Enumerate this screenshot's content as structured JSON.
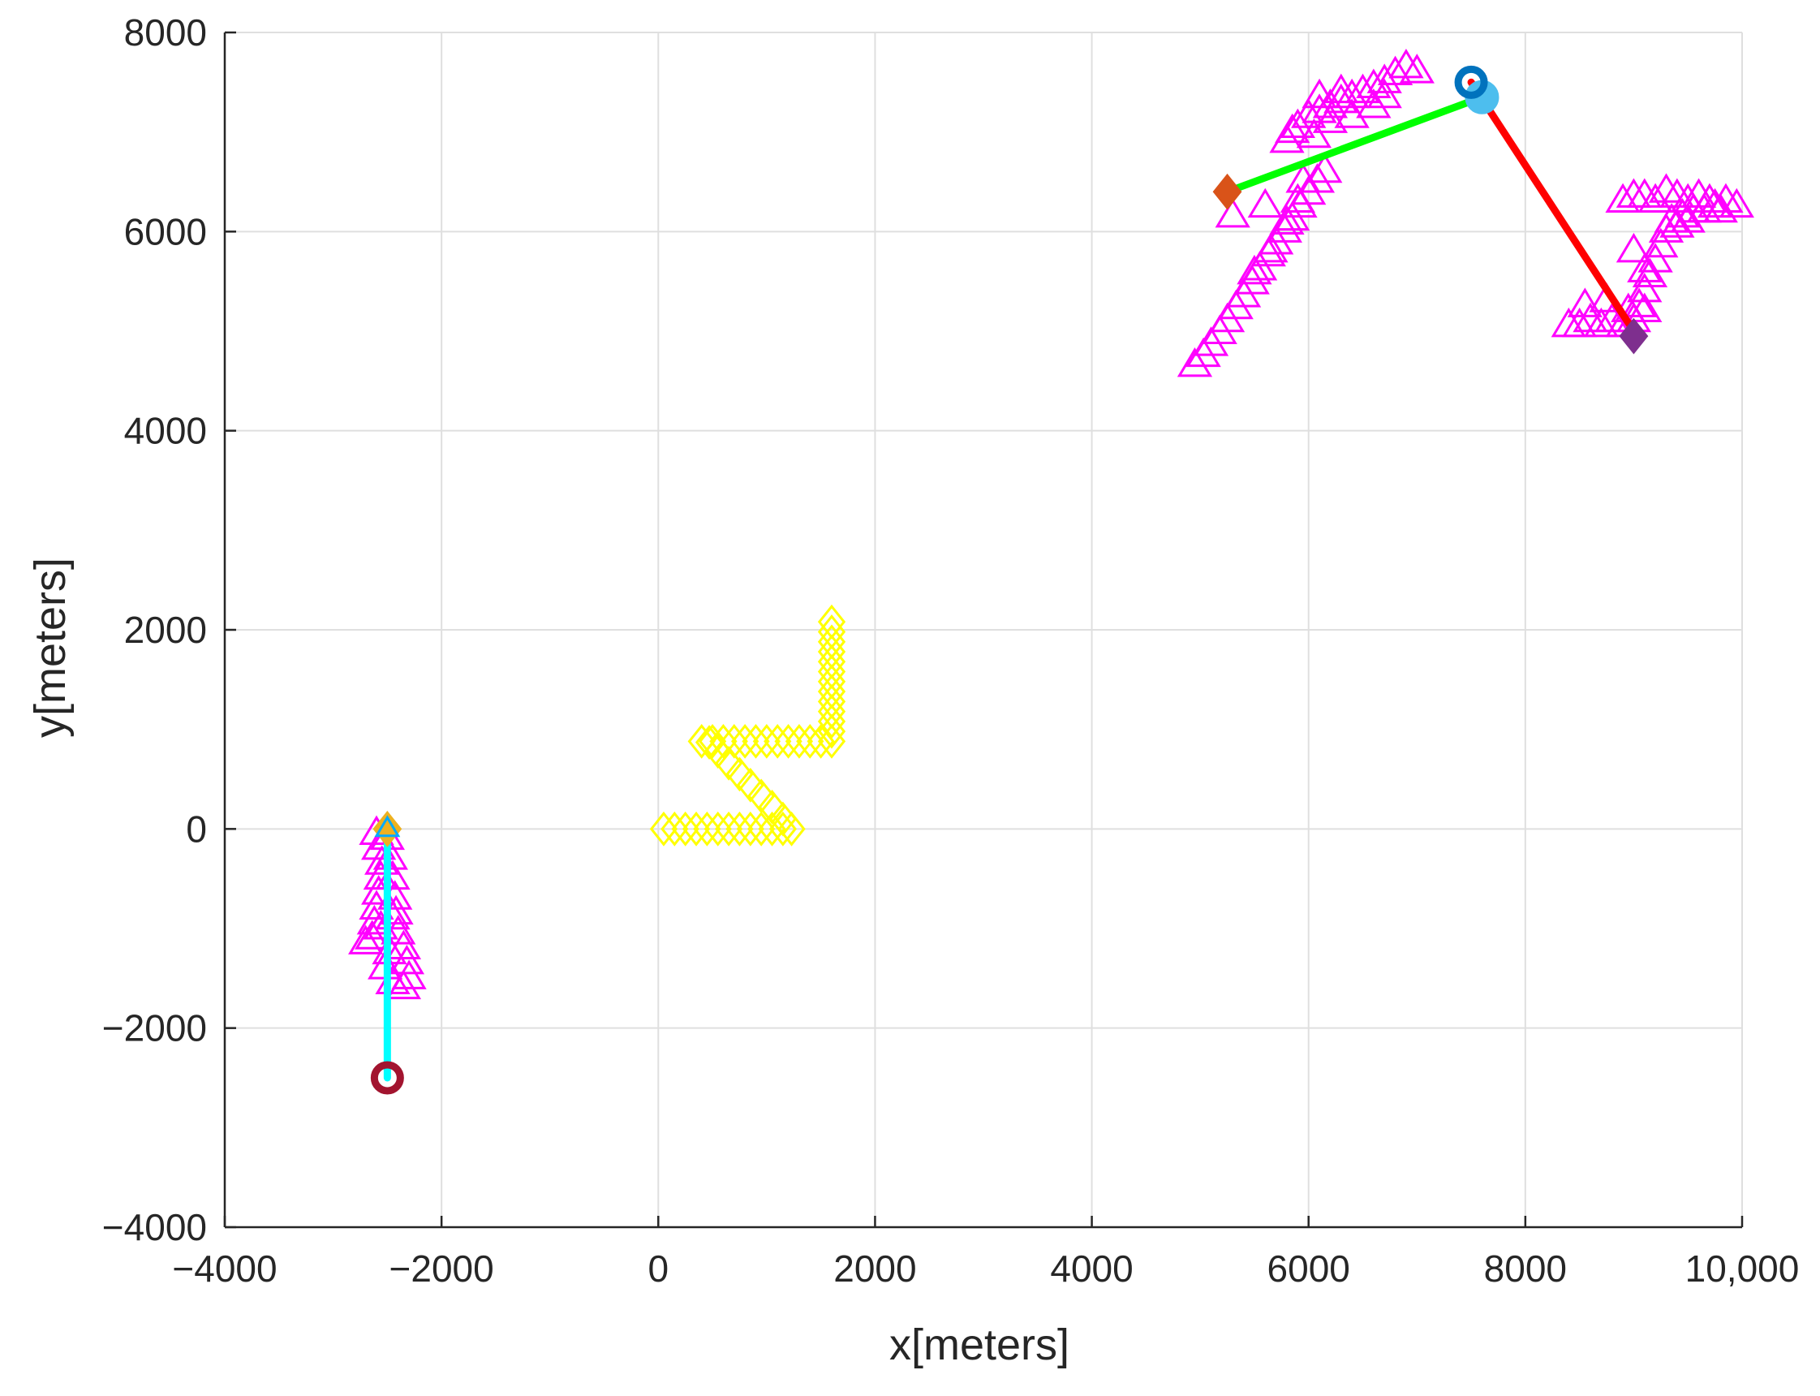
{
  "chart_data": {
    "type": "scatter",
    "title": "",
    "xlabel": "x[meters]",
    "ylabel": "y[meters]",
    "xlim": [
      -4000,
      10000
    ],
    "ylim": [
      -4000,
      8000
    ],
    "grid": true,
    "x_ticks": [
      {
        "value": -4000,
        "label": "−4000"
      },
      {
        "value": -2000,
        "label": "−2000"
      },
      {
        "value": 0,
        "label": "0"
      },
      {
        "value": 2000,
        "label": "2000"
      },
      {
        "value": 4000,
        "label": "4000"
      },
      {
        "value": 6000,
        "label": "6000"
      },
      {
        "value": 8000,
        "label": "8000"
      },
      {
        "value": 10000,
        "label": "10,000"
      }
    ],
    "y_ticks": [
      {
        "value": -4000,
        "label": "−4000"
      },
      {
        "value": -2000,
        "label": "−2000"
      },
      {
        "value": 0,
        "label": "0"
      },
      {
        "value": 2000,
        "label": "2000"
      },
      {
        "value": 4000,
        "label": "4000"
      },
      {
        "value": 6000,
        "label": "6000"
      },
      {
        "value": 8000,
        "label": "8000"
      }
    ],
    "series": [
      {
        "marker": "diamond",
        "color": "#ffff00",
        "filled": false,
        "points": [
          [
            50,
            0
          ],
          [
            150,
            0
          ],
          [
            250,
            0
          ],
          [
            350,
            0
          ],
          [
            450,
            0
          ],
          [
            550,
            0
          ],
          [
            650,
            0
          ],
          [
            750,
            0
          ],
          [
            850,
            0
          ],
          [
            950,
            0
          ],
          [
            1050,
            0
          ],
          [
            1150,
            0
          ],
          [
            1230,
            0
          ],
          [
            1150,
            100
          ],
          [
            1050,
            220
          ],
          [
            950,
            330
          ],
          [
            850,
            440
          ],
          [
            750,
            550
          ],
          [
            650,
            660
          ],
          [
            550,
            780
          ],
          [
            470,
            870
          ],
          [
            400,
            880
          ],
          [
            500,
            880
          ],
          [
            600,
            880
          ],
          [
            700,
            880
          ],
          [
            800,
            880
          ],
          [
            900,
            880
          ],
          [
            1000,
            880
          ],
          [
            1100,
            880
          ],
          [
            1200,
            880
          ],
          [
            1300,
            880
          ],
          [
            1400,
            880
          ],
          [
            1500,
            880
          ],
          [
            1600,
            880
          ],
          [
            1600,
            980
          ],
          [
            1600,
            1080
          ],
          [
            1600,
            1180
          ],
          [
            1600,
            1280
          ],
          [
            1600,
            1380
          ],
          [
            1600,
            1480
          ],
          [
            1600,
            1580
          ],
          [
            1600,
            1680
          ],
          [
            1600,
            1780
          ],
          [
            1600,
            1880
          ],
          [
            1600,
            1980
          ],
          [
            1600,
            2080
          ]
        ]
      },
      {
        "marker": "triangle",
        "color": "#ff00ff",
        "filled": false,
        "points": [
          [
            -2600,
            -50
          ],
          [
            -2580,
            -200
          ],
          [
            -2550,
            -350
          ],
          [
            -2560,
            -500
          ],
          [
            -2580,
            -650
          ],
          [
            -2600,
            -800
          ],
          [
            -2620,
            -950
          ],
          [
            -2640,
            -1100
          ],
          [
            -2500,
            -100
          ],
          [
            -2470,
            -300
          ],
          [
            -2450,
            -500
          ],
          [
            -2430,
            -700
          ],
          [
            -2450,
            -900
          ],
          [
            -2400,
            -1050
          ],
          [
            -2350,
            -1200
          ],
          [
            -2320,
            -1350
          ],
          [
            -2300,
            -1500
          ],
          [
            -2350,
            -1600
          ],
          [
            -2450,
            -1550
          ],
          [
            -2520,
            -1400
          ],
          [
            -2480,
            -1250
          ],
          [
            -2700,
            -1150
          ],
          [
            -2560,
            -1000
          ],
          [
            -2420,
            -850
          ]
        ]
      },
      {
        "marker": "triangle",
        "color": "#ff00ff",
        "filled": false,
        "points": [
          [
            4950,
            4650
          ],
          [
            5030,
            4750
          ],
          [
            5100,
            4860
          ],
          [
            5180,
            4980
          ],
          [
            5250,
            5100
          ],
          [
            5330,
            5230
          ],
          [
            5400,
            5350
          ],
          [
            5480,
            5480
          ],
          [
            5550,
            5620
          ],
          [
            5630,
            5760
          ],
          [
            5700,
            5880
          ],
          [
            5780,
            6000
          ],
          [
            5850,
            6120
          ],
          [
            5920,
            6250
          ],
          [
            6000,
            6380
          ],
          [
            6080,
            6500
          ],
          [
            6150,
            6600
          ],
          [
            5500,
            5580
          ],
          [
            5650,
            5800
          ],
          [
            5800,
            6080
          ],
          [
            5900,
            6300
          ],
          [
            5300,
            6150
          ],
          [
            5600,
            6250
          ],
          [
            5950,
            6500
          ],
          [
            5800,
            6900
          ],
          [
            5900,
            7050
          ],
          [
            6000,
            7150
          ],
          [
            6100,
            7200
          ],
          [
            6200,
            7250
          ],
          [
            6300,
            7300
          ],
          [
            6400,
            7350
          ],
          [
            6500,
            7400
          ],
          [
            6600,
            7450
          ],
          [
            6700,
            7500
          ],
          [
            6800,
            7580
          ],
          [
            6900,
            7650
          ],
          [
            7000,
            7600
          ],
          [
            6100,
            7350
          ],
          [
            6300,
            7400
          ],
          [
            6200,
            7100
          ],
          [
            6400,
            7150
          ],
          [
            6600,
            7250
          ],
          [
            6050,
            6950
          ],
          [
            6700,
            7350
          ],
          [
            5850,
            7000
          ]
        ]
      },
      {
        "marker": "triangle",
        "color": "#ff00ff",
        "filled": false,
        "points": [
          [
            8400,
            5050
          ],
          [
            8500,
            5050
          ],
          [
            8600,
            5100
          ],
          [
            8700,
            5050
          ],
          [
            8800,
            5100
          ],
          [
            8900,
            5050
          ],
          [
            9000,
            5100
          ],
          [
            9050,
            5250
          ],
          [
            9100,
            5400
          ],
          [
            9150,
            5550
          ],
          [
            9200,
            5700
          ],
          [
            9250,
            5850
          ],
          [
            9300,
            6000
          ],
          [
            9350,
            6100
          ],
          [
            9450,
            6150
          ],
          [
            9550,
            6200
          ],
          [
            9650,
            6200
          ],
          [
            9750,
            6250
          ],
          [
            9850,
            6300
          ],
          [
            9950,
            6250
          ],
          [
            8750,
            5300
          ],
          [
            8950,
            5200
          ],
          [
            9100,
            5200
          ],
          [
            8550,
            5250
          ],
          [
            8900,
            6300
          ],
          [
            9000,
            6350
          ],
          [
            9100,
            6350
          ],
          [
            9200,
            6300
          ],
          [
            9300,
            6400
          ],
          [
            9400,
            6350
          ],
          [
            9500,
            6300
          ],
          [
            9600,
            6350
          ],
          [
            9700,
            6300
          ],
          [
            9800,
            6200
          ],
          [
            9400,
            6050
          ],
          [
            9500,
            6100
          ],
          [
            9000,
            5800
          ],
          [
            9100,
            5600
          ]
        ]
      }
    ],
    "tracks": [
      {
        "color": "#00ffff",
        "from": [
          -2500,
          -2500
        ],
        "to": [
          -2500,
          0
        ]
      },
      {
        "color": "#00ff00",
        "from": [
          5250,
          6400
        ],
        "to": [
          7600,
          7350
        ]
      },
      {
        "color": "#ff0000",
        "from": [
          7500,
          7500
        ],
        "to": [
          9000,
          5000
        ]
      }
    ],
    "key_markers": [
      {
        "marker": "circle",
        "color": "#a2142f",
        "x": -2500,
        "y": -2500
      },
      {
        "marker": "diamond-filled",
        "color": "#edb120",
        "x": -2500,
        "y": 0
      },
      {
        "marker": "triangle",
        "color": "#00aaff",
        "x": -2500,
        "y": 0
      },
      {
        "marker": "diamond-filled",
        "color": "#d95319",
        "x": 5250,
        "y": 6400
      },
      {
        "marker": "circle-filled",
        "color": "#4dbeee",
        "x": 7600,
        "y": 7350
      },
      {
        "marker": "circle",
        "color": "#0072bd",
        "x": 7500,
        "y": 7500
      },
      {
        "marker": "diamond-filled",
        "color": "#7e2f8e",
        "x": 9000,
        "y": 4950
      }
    ]
  }
}
